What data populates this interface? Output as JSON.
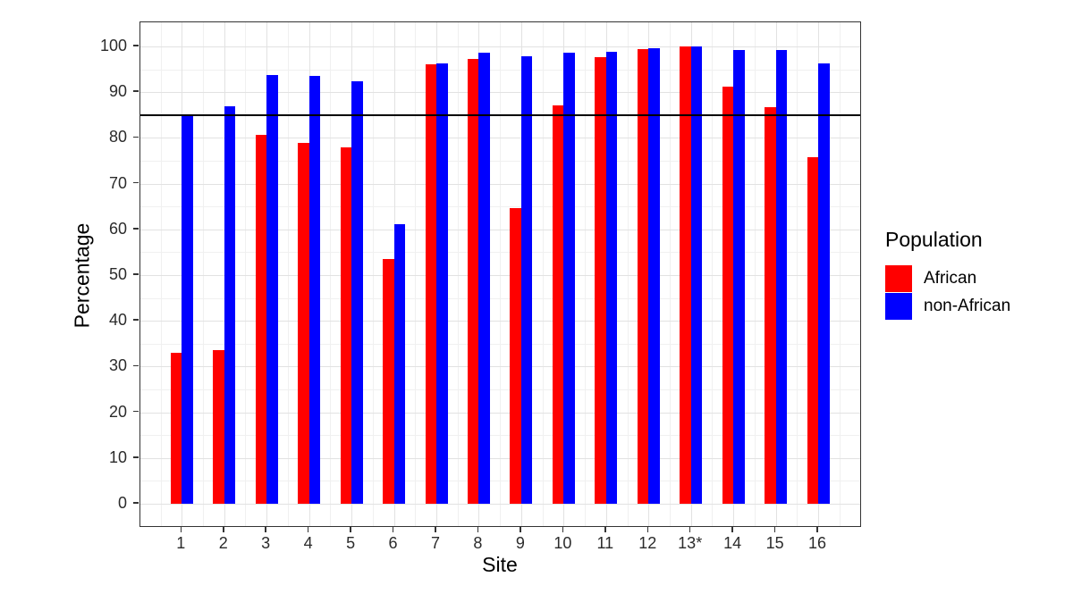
{
  "chart_data": {
    "type": "bar",
    "title": "",
    "xlabel": "Site",
    "ylabel": "Percentage",
    "categories": [
      "1",
      "2",
      "3",
      "4",
      "5",
      "6",
      "7",
      "8",
      "9",
      "10",
      "11",
      "12",
      "13*",
      "14",
      "15",
      "16"
    ],
    "series": [
      {
        "name": "African",
        "color": "#ff0000",
        "values": [
          33.0,
          33.5,
          80.7,
          79.0,
          77.9,
          53.5,
          96.0,
          97.2,
          64.7,
          87.2,
          97.6,
          99.5,
          100,
          91.2,
          86.8,
          75.8
        ]
      },
      {
        "name": "non-African",
        "color": "#0000ff",
        "values": [
          84.8,
          86.9,
          93.7,
          93.6,
          92.3,
          61.1,
          96.2,
          98.6,
          97.8,
          98.6,
          98.9,
          99.7,
          100,
          99.3,
          99.2,
          96.3
        ]
      }
    ],
    "reference_line": {
      "value": 85,
      "color": "#000000"
    },
    "y_ticks": [
      0,
      10,
      20,
      30,
      40,
      50,
      60,
      70,
      80,
      90,
      100
    ],
    "ylim": [
      -5.3,
      105.3
    ],
    "grid": "on",
    "legend": {
      "title": "Population",
      "position": "right"
    }
  }
}
